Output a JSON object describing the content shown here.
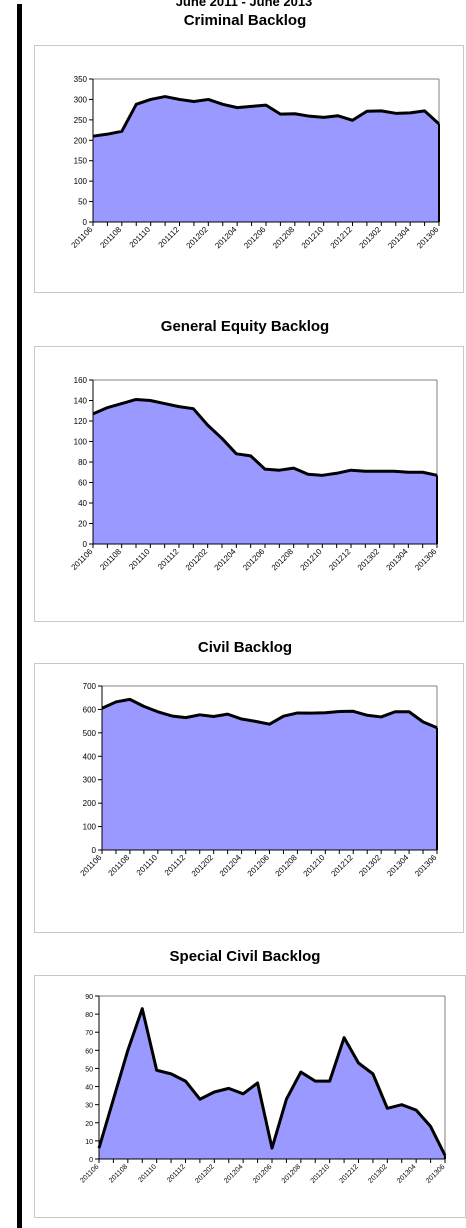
{
  "page": {
    "header": "June 2011 - June 2013"
  },
  "style": {
    "area_fill": "#9999ff",
    "line_color": "#000000"
  },
  "chart_data": [
    {
      "type": "area",
      "title": "Criminal Backlog",
      "categories": [
        "201106",
        "201107",
        "201108",
        "201109",
        "201110",
        "201111",
        "201112",
        "201201",
        "201202",
        "201203",
        "201204",
        "201205",
        "201206",
        "201207",
        "201208",
        "201209",
        "201210",
        "201211",
        "201212",
        "201301",
        "201302",
        "201303",
        "201304",
        "201305",
        "201306"
      ],
      "xtick_labels": [
        "201106",
        "201108",
        "201110",
        "201112",
        "201202",
        "201204",
        "201206",
        "201208",
        "201210",
        "201212",
        "201302",
        "201304",
        "201306"
      ],
      "values": [
        210,
        215,
        222,
        288,
        300,
        307,
        300,
        295,
        300,
        288,
        280,
        283,
        286,
        264,
        265,
        259,
        256,
        260,
        249,
        271,
        272,
        266,
        267,
        272,
        240
      ],
      "ylim": [
        0,
        350
      ],
      "yticks": [
        0,
        50,
        100,
        150,
        200,
        250,
        300,
        350
      ],
      "grid": false,
      "legend": "none",
      "xlabel": "",
      "ylabel": ""
    },
    {
      "type": "area",
      "title": "General Equity Backlog",
      "categories": [
        "201106",
        "201107",
        "201108",
        "201109",
        "201110",
        "201111",
        "201112",
        "201201",
        "201202",
        "201203",
        "201204",
        "201205",
        "201206",
        "201207",
        "201208",
        "201209",
        "201210",
        "201211",
        "201212",
        "201301",
        "201302",
        "201303",
        "201304",
        "201305",
        "201306"
      ],
      "xtick_labels": [
        "201106",
        "201108",
        "201110",
        "201112",
        "201202",
        "201204",
        "201206",
        "201208",
        "201210",
        "201212",
        "201302",
        "201304",
        "201306"
      ],
      "values": [
        127,
        133,
        137,
        141,
        140,
        137,
        134,
        132,
        116,
        103,
        88,
        86,
        73,
        72,
        74,
        68,
        67,
        69,
        72,
        71,
        71,
        71,
        70,
        70,
        67
      ],
      "ylim": [
        0,
        160
      ],
      "yticks": [
        0,
        20,
        40,
        60,
        80,
        100,
        120,
        140,
        160
      ],
      "grid": false,
      "legend": "none",
      "xlabel": "",
      "ylabel": ""
    },
    {
      "type": "area",
      "title": "Civil Backlog",
      "categories": [
        "201106",
        "201107",
        "201108",
        "201109",
        "201110",
        "201111",
        "201112",
        "201201",
        "201202",
        "201203",
        "201204",
        "201205",
        "201206",
        "201207",
        "201208",
        "201209",
        "201210",
        "201211",
        "201212",
        "201301",
        "201302",
        "201303",
        "201304",
        "201305",
        "201306"
      ],
      "xtick_labels": [
        "201106",
        "201108",
        "201110",
        "201112",
        "201202",
        "201204",
        "201206",
        "201208",
        "201210",
        "201212",
        "201302",
        "201304",
        "201306"
      ],
      "values": [
        605,
        632,
        643,
        613,
        590,
        572,
        565,
        577,
        570,
        580,
        559,
        549,
        537,
        571,
        585,
        584,
        586,
        591,
        592,
        575,
        568,
        590,
        590,
        547,
        522
      ],
      "ylim": [
        0,
        700
      ],
      "yticks": [
        0,
        100,
        200,
        300,
        400,
        500,
        600,
        700
      ],
      "grid": false,
      "legend": "none",
      "xlabel": "",
      "ylabel": ""
    },
    {
      "type": "area",
      "title": "Special Civil Backlog",
      "categories": [
        "201106",
        "201107",
        "201108",
        "201109",
        "201110",
        "201111",
        "201112",
        "201201",
        "201202",
        "201203",
        "201204",
        "201205",
        "201206",
        "201207",
        "201208",
        "201209",
        "201210",
        "201211",
        "201212",
        "201301",
        "201302",
        "201303",
        "201304",
        "201305",
        "201306"
      ],
      "xtick_labels": [
        "201106",
        "201108",
        "201110",
        "201112",
        "201202",
        "201204",
        "201206",
        "201208",
        "201210",
        "201212",
        "201302",
        "201304",
        "201306"
      ],
      "values": [
        6,
        33,
        60,
        83,
        49,
        47,
        43,
        33,
        37,
        39,
        36,
        42,
        6,
        33,
        48,
        43,
        43,
        67,
        53,
        47,
        28,
        30,
        27,
        18,
        2
      ],
      "ylim": [
        0,
        90
      ],
      "yticks": [
        0,
        10,
        20,
        30,
        40,
        50,
        60,
        70,
        80,
        90
      ],
      "grid": false,
      "legend": "none",
      "xlabel": "",
      "ylabel": ""
    }
  ]
}
